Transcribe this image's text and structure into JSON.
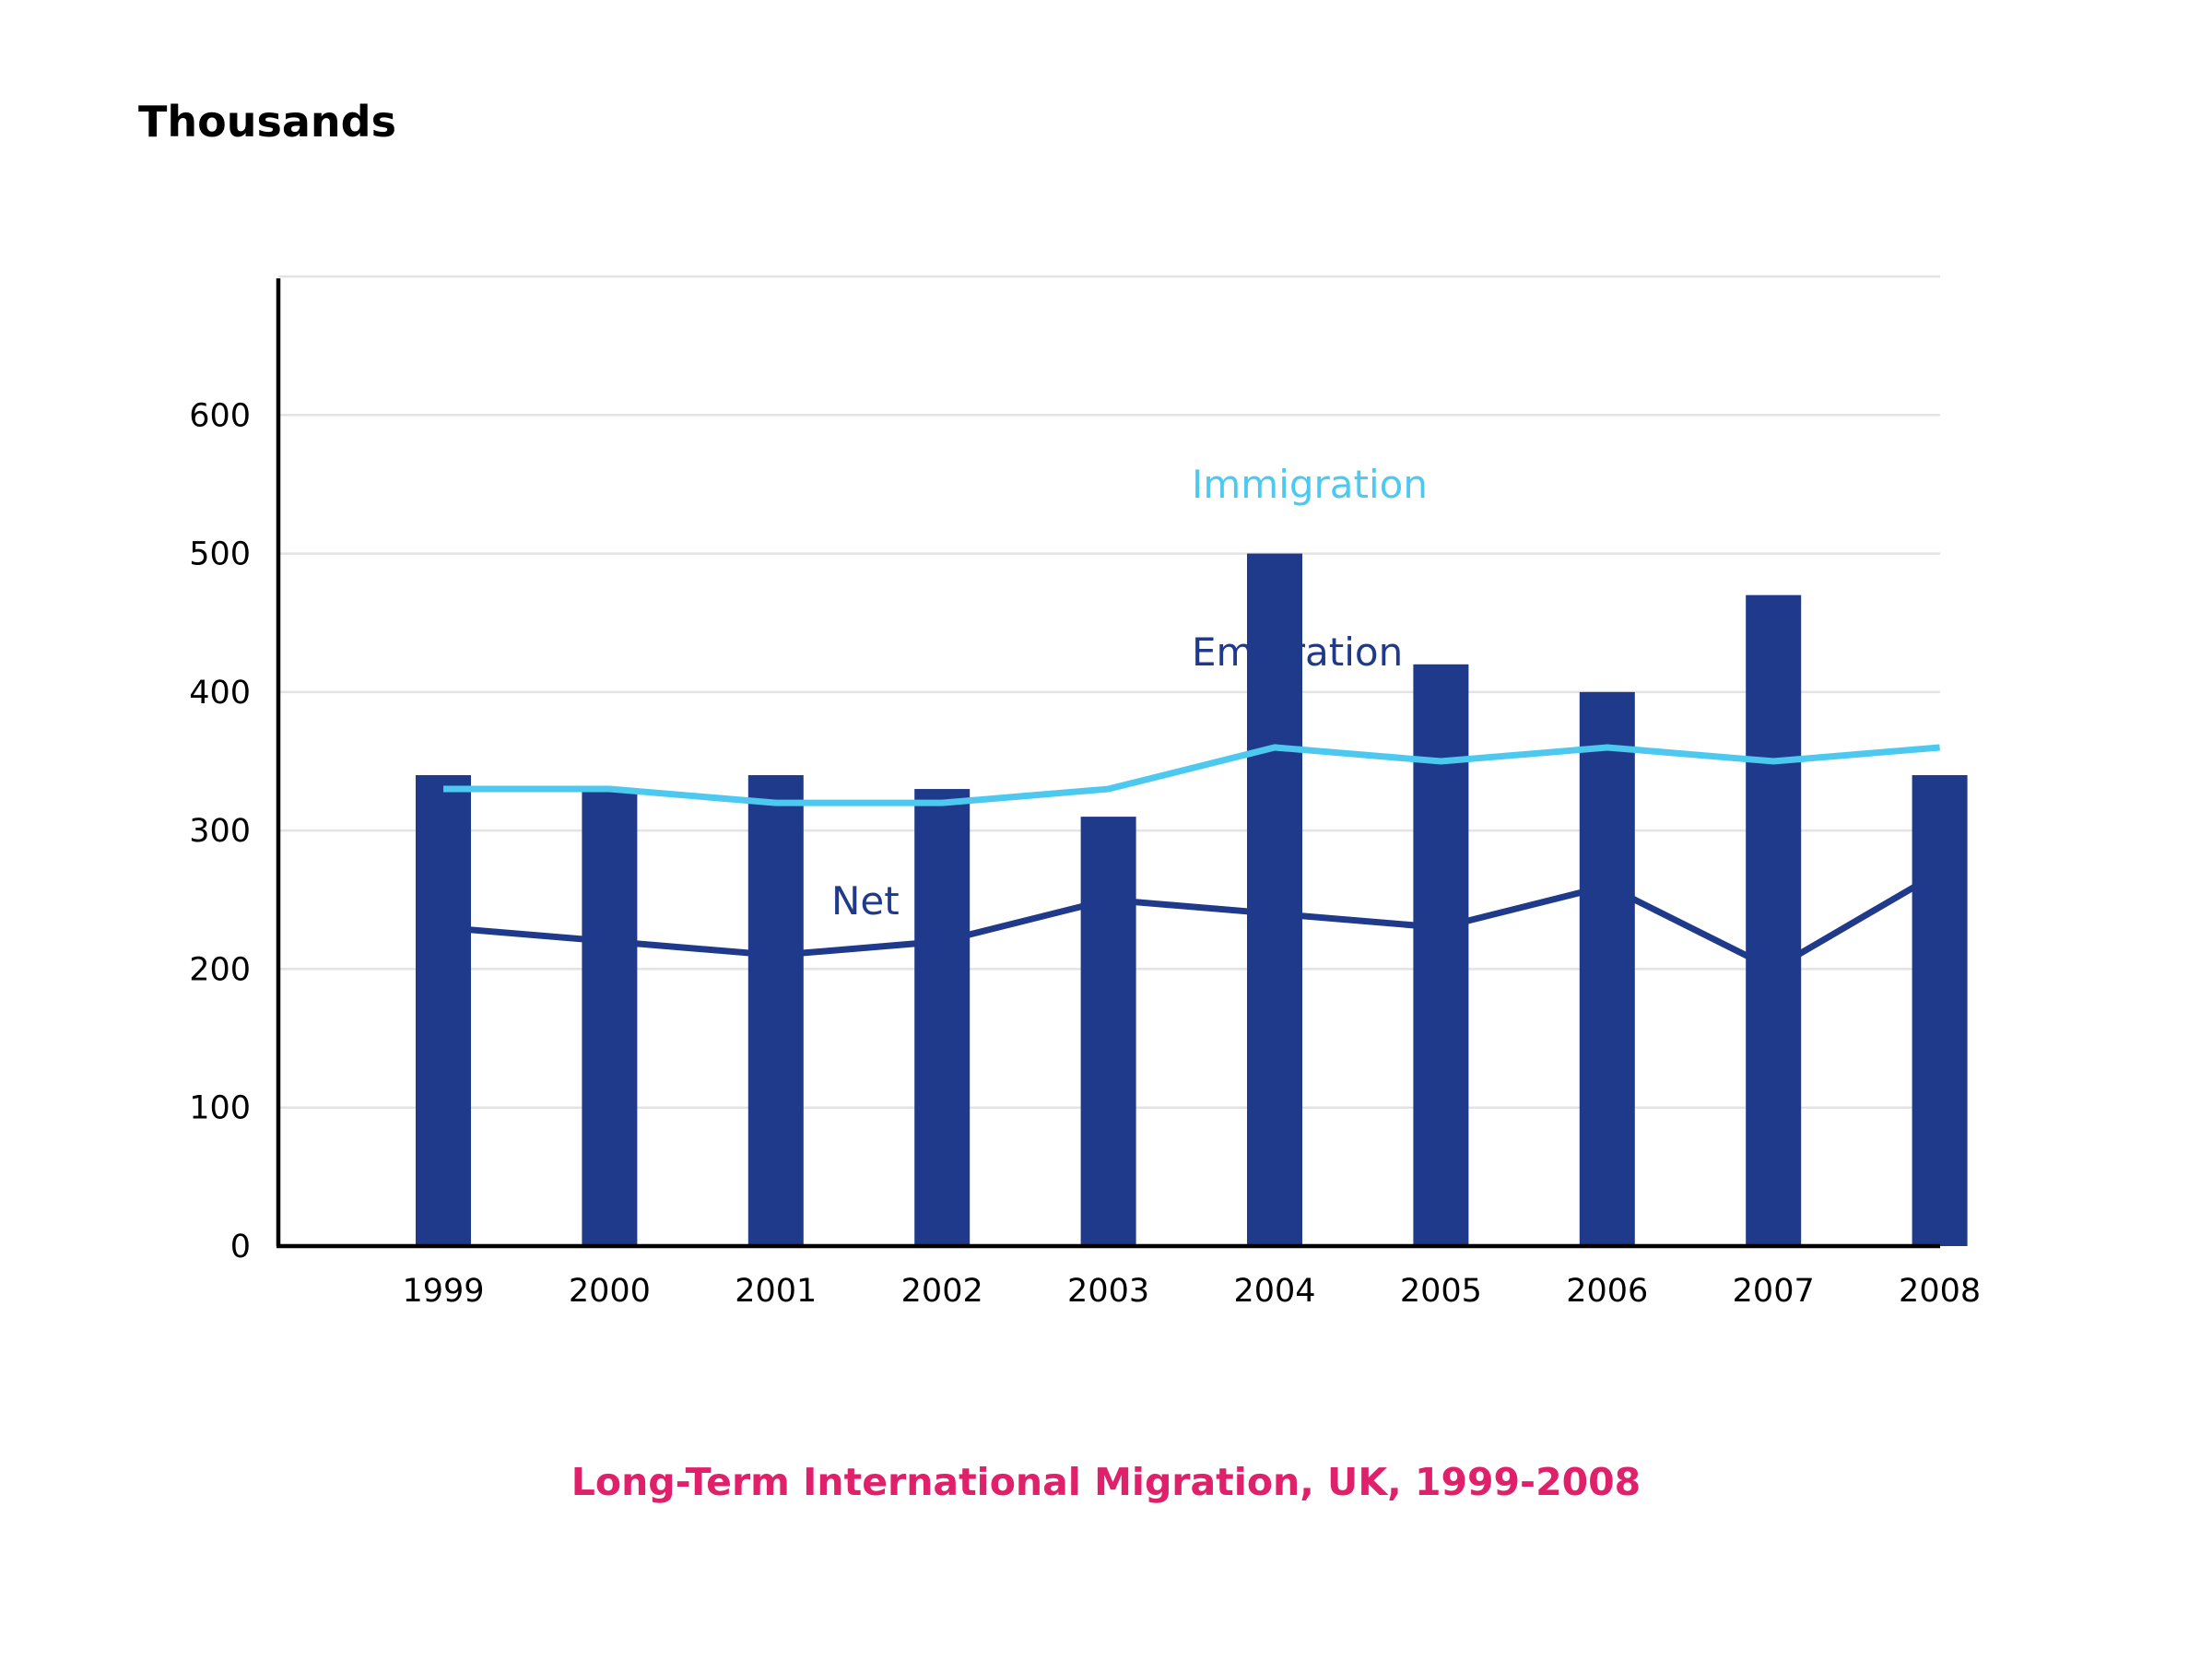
{
  "chart_data": {
    "type": "bar",
    "ylabel": "Thousands",
    "caption": "Long-Term International Migration, UK, 1999-2008",
    "ylim": [
      0,
      700
    ],
    "yticks": [
      0,
      100,
      200,
      300,
      400,
      500,
      600
    ],
    "grid": true,
    "categories": [
      "1999",
      "2000",
      "2001",
      "2002",
      "2003",
      "2004",
      "2005",
      "2006",
      "2007",
      "2008"
    ],
    "series": [
      {
        "name": "Immigration",
        "type": "bar",
        "color": "#1f3a8a",
        "values": [
          340,
          330,
          340,
          330,
          310,
          500,
          420,
          400,
          470,
          340
        ]
      },
      {
        "name": "Emigration",
        "type": "line",
        "color": "#4dc9f0",
        "values": [
          330,
          330,
          320,
          320,
          330,
          360,
          350,
          360,
          350,
          360
        ]
      },
      {
        "name": "Net",
        "type": "line",
        "color": "#1f3a8a",
        "values": [
          230,
          220,
          210,
          220,
          250,
          240,
          230,
          260,
          200,
          270
        ]
      }
    ],
    "series_labels": {
      "immigration_color": "#4dc9f0",
      "emigration_color": "#1f3a8a",
      "net_color": "#1f3a8a"
    },
    "caption_color": "#e0206a"
  }
}
